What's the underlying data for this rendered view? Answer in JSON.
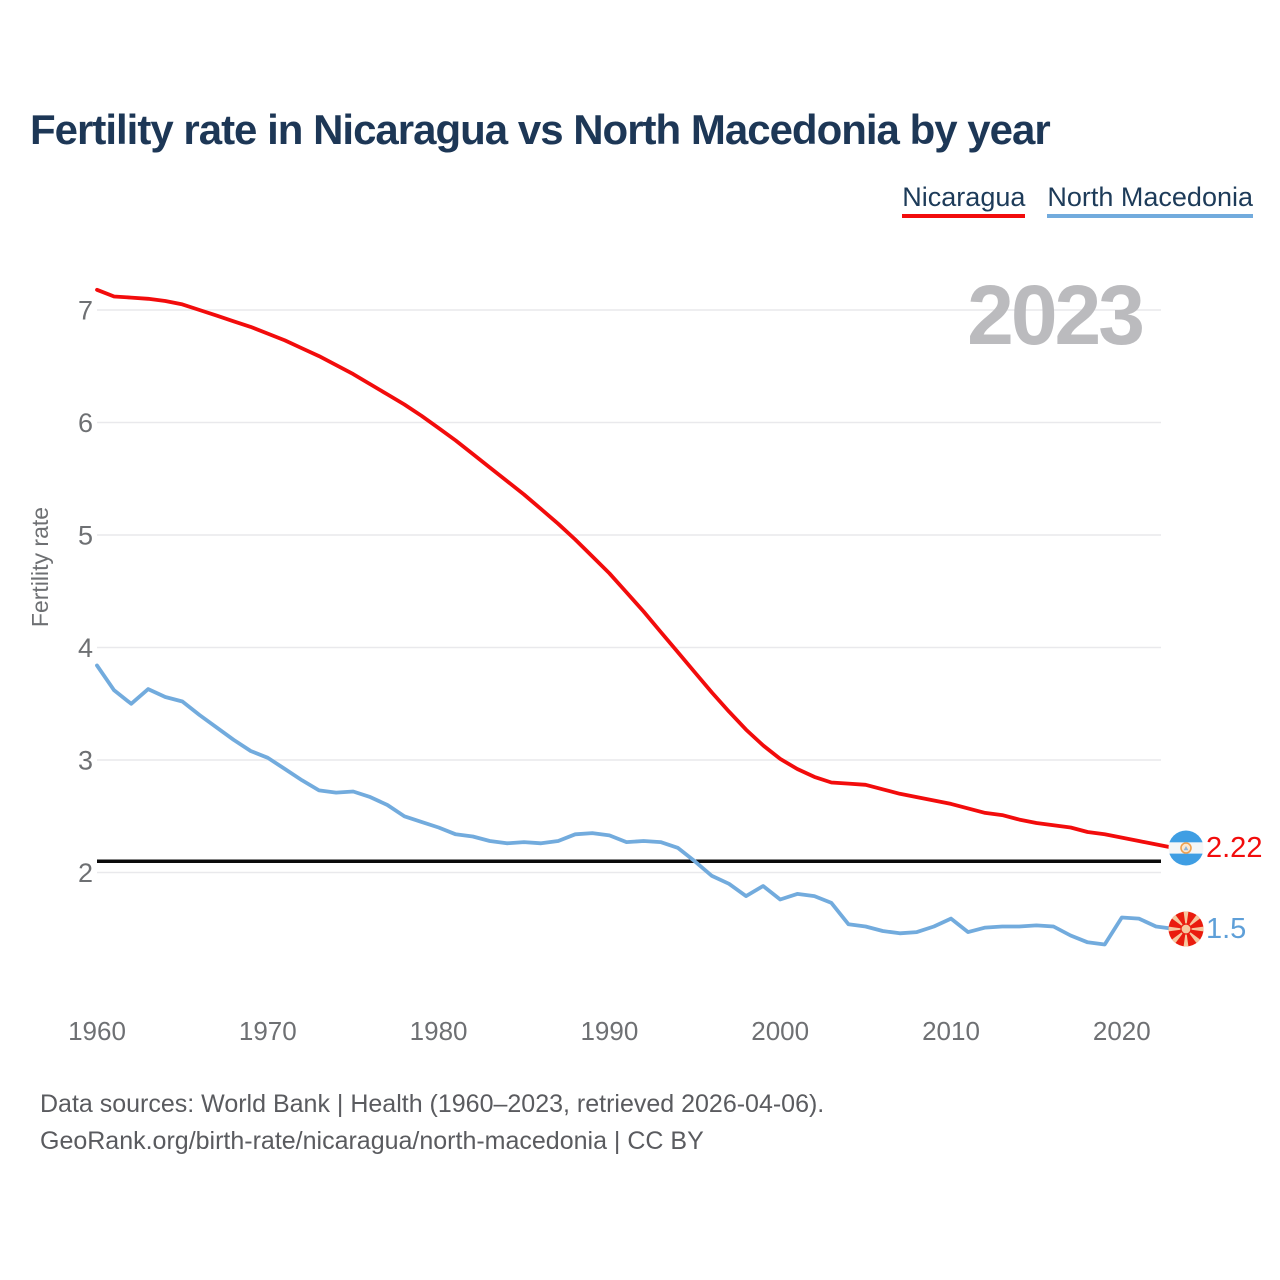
{
  "page_title": "Fertility rate in Nicaragua vs North Macedonia by year",
  "watermark": "2023",
  "legend": {
    "items": [
      {
        "label": "Nicaragua",
        "color": "#f20c0c"
      },
      {
        "label": "North Macedonia",
        "color": "#72abdd"
      }
    ]
  },
  "end_labels": {
    "nicaragua": {
      "value": "2.22",
      "color": "#f20c0c"
    },
    "north_macedonia": {
      "value": "1.5",
      "color": "#5e9fd8"
    }
  },
  "footer": {
    "line1": "Data sources: World Bank | Health (1960–2023, retrieved 2026-04-06).",
    "line2": "GeoRank.org/birth-rate/nicaragua/north-macedonia | CC BY"
  },
  "chart_data": {
    "type": "line",
    "title": "Fertility rate in Nicaragua vs North Macedonia by year",
    "xlabel": "",
    "ylabel": "Fertility rate",
    "x_range": [
      1960,
      2023
    ],
    "ylim": [
      1.0,
      7.6
    ],
    "y_ticks": [
      7,
      6,
      5,
      4,
      3,
      2
    ],
    "x_ticks": [
      1960,
      1970,
      1980,
      1990,
      2000,
      2010,
      2020
    ],
    "grid": "horizontal",
    "legend_position": "top-right",
    "reference_line": 2.1,
    "x": [
      1960,
      1961,
      1962,
      1963,
      1964,
      1965,
      1966,
      1967,
      1968,
      1969,
      1970,
      1971,
      1972,
      1973,
      1974,
      1975,
      1976,
      1977,
      1978,
      1979,
      1980,
      1981,
      1982,
      1983,
      1984,
      1985,
      1986,
      1987,
      1988,
      1989,
      1990,
      1991,
      1992,
      1993,
      1994,
      1995,
      1996,
      1997,
      1998,
      1999,
      2000,
      2001,
      2002,
      2003,
      2004,
      2005,
      2006,
      2007,
      2008,
      2009,
      2010,
      2011,
      2012,
      2013,
      2014,
      2015,
      2016,
      2017,
      2018,
      2019,
      2020,
      2021,
      2022,
      2023
    ],
    "series": [
      {
        "name": "Nicaragua",
        "color": "#f20c0c",
        "final_label": "2.22",
        "values": [
          7.18,
          7.12,
          7.11,
          7.1,
          7.08,
          7.05,
          7.0,
          6.95,
          6.9,
          6.85,
          6.79,
          6.73,
          6.66,
          6.59,
          6.51,
          6.43,
          6.34,
          6.25,
          6.16,
          6.06,
          5.95,
          5.84,
          5.72,
          5.6,
          5.48,
          5.36,
          5.23,
          5.1,
          4.96,
          4.81,
          4.66,
          4.49,
          4.32,
          4.14,
          3.96,
          3.78,
          3.6,
          3.43,
          3.27,
          3.13,
          3.01,
          2.92,
          2.85,
          2.8,
          2.79,
          2.78,
          2.74,
          2.7,
          2.67,
          2.64,
          2.61,
          2.57,
          2.53,
          2.51,
          2.47,
          2.44,
          2.42,
          2.4,
          2.36,
          2.34,
          2.31,
          2.28,
          2.25,
          2.22
        ]
      },
      {
        "name": "North Macedonia",
        "color": "#72abdd",
        "final_label": "1.5",
        "values": [
          3.84,
          3.62,
          3.5,
          3.63,
          3.56,
          3.52,
          3.4,
          3.29,
          3.18,
          3.08,
          3.02,
          2.92,
          2.82,
          2.73,
          2.71,
          2.72,
          2.67,
          2.6,
          2.5,
          2.45,
          2.4,
          2.34,
          2.32,
          2.28,
          2.26,
          2.27,
          2.26,
          2.28,
          2.34,
          2.35,
          2.33,
          2.27,
          2.28,
          2.27,
          2.22,
          2.1,
          1.97,
          1.9,
          1.79,
          1.88,
          1.76,
          1.81,
          1.79,
          1.73,
          1.54,
          1.52,
          1.48,
          1.46,
          1.47,
          1.52,
          1.59,
          1.47,
          1.51,
          1.52,
          1.52,
          1.53,
          1.52,
          1.44,
          1.38,
          1.36,
          1.6,
          1.59,
          1.52,
          1.5
        ]
      }
    ]
  }
}
